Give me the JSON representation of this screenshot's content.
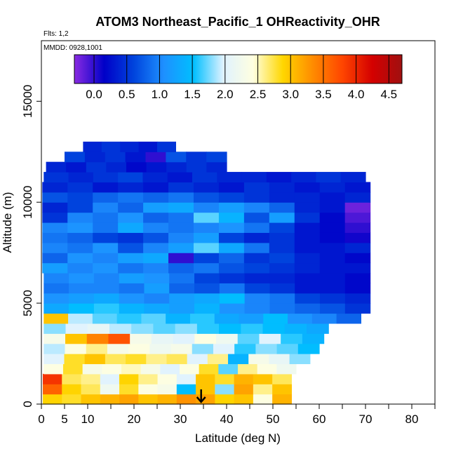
{
  "chart_data": {
    "type": "heatmap",
    "title": "ATOM3 Northeast_Pacific_1 OHReactivity_OHR",
    "annotations": {
      "flights": "Flts: 1,2",
      "dates": "MMDD: 0928,1001"
    },
    "xlabel": "Latitude (deg N)",
    "ylabel": "Altitude (m)",
    "xlim": [
      0,
      85
    ],
    "ylim": [
      0,
      18000
    ],
    "x_major_ticks": [
      0,
      10,
      20,
      30,
      40,
      50,
      60,
      70,
      80
    ],
    "x_minor_tick_labels": [
      5
    ],
    "x_minor_ticks": [
      5,
      15,
      25,
      35,
      45,
      55,
      65,
      75,
      85
    ],
    "y_ticks": [
      0,
      5000,
      10000,
      15000
    ],
    "colorbar": {
      "range": [
        -0.3,
        4.7
      ],
      "ticks": [
        0.0,
        0.5,
        1.0,
        1.5,
        2.0,
        2.5,
        3.0,
        3.5,
        4.0,
        4.5
      ],
      "tick_labels": [
        "0.0",
        "0.5",
        "1.0",
        "1.5",
        "2.0",
        "2.5",
        "3.0",
        "3.5",
        "4.0",
        "4.5"
      ],
      "colors": [
        "#8a2be2",
        "#0000c8",
        "#0044dd",
        "#1e90ff",
        "#00bfff",
        "#dff2ff",
        "#ffffe0",
        "#ffd700",
        "#ff8c00",
        "#ff4500",
        "#d40000",
        "#a01010"
      ]
    },
    "marker": {
      "latitude": 34.5,
      "direction": "down"
    },
    "altitude_bins": [
      {
        "alt": [
          0,
          500
        ],
        "lat": [
          0.3,
          54
        ],
        "values": [
          2.9,
          2.8,
          3.0,
          3.1,
          3.2,
          3.0,
          3.1,
          3.3,
          3.2,
          2.9,
          3.0,
          2.4,
          3.1
        ]
      },
      {
        "alt": [
          500,
          1000
        ],
        "lat": [
          0.3,
          54
        ],
        "values": [
          3.6,
          2.9,
          2.7,
          2.2,
          2.8,
          2.4,
          2.3,
          1.5,
          3.0,
          1.8,
          3.2,
          2.6,
          3.0
        ]
      },
      {
        "alt": [
          1000,
          1500
        ],
        "lat": [
          0.3,
          54
        ],
        "values": [
          3.9,
          2.7,
          2.6,
          2.0,
          2.9,
          2.6,
          2.4,
          2.0,
          3.0,
          2.8,
          3.1,
          3.0,
          2.7
        ]
      },
      {
        "alt": [
          1500,
          2000
        ],
        "lat": [
          0.5,
          55
        ],
        "values": [
          2.4,
          2.8,
          2.3,
          2.4,
          2.5,
          2.3,
          2.0,
          2.4,
          2.8,
          1.7,
          2.6,
          2.4,
          2.2
        ]
      },
      {
        "alt": [
          2000,
          2500
        ],
        "lat": [
          0.5,
          58
        ],
        "values": [
          2.0,
          2.8,
          3.0,
          2.7,
          2.8,
          2.6,
          2.7,
          2.0,
          2.6,
          1.4,
          2.3,
          2.1,
          1.8
        ]
      },
      {
        "alt": [
          2500,
          3000
        ],
        "lat": [
          0.5,
          60
        ],
        "values": [
          1.9,
          2.4,
          2.6,
          2.3,
          2.4,
          2.2,
          2.3,
          1.8,
          2.0,
          1.6,
          1.8,
          1.7,
          1.5
        ]
      },
      {
        "alt": [
          3000,
          3500
        ],
        "lat": [
          0.5,
          61
        ],
        "values": [
          2.3,
          3.0,
          3.4,
          3.7,
          2.3,
          2.1,
          2.0,
          2.4,
          2.2,
          1.7,
          2.0,
          1.6,
          1.4
        ]
      },
      {
        "alt": [
          3500,
          4000
        ],
        "lat": [
          0.5,
          62
        ],
        "values": [
          1.8,
          2.0,
          2.1,
          1.9,
          1.8,
          1.7,
          1.8,
          1.6,
          1.5,
          1.6,
          1.5,
          1.4,
          1.3
        ]
      },
      {
        "alt": [
          4000,
          4500
        ],
        "lat": [
          0.5,
          69
        ],
        "values": [
          3.0,
          1.9,
          1.7,
          1.6,
          1.7,
          1.4,
          1.6,
          1.3,
          1.2,
          1.5,
          1.1,
          1.0,
          0.8
        ]
      },
      {
        "alt": [
          4500,
          5000
        ],
        "lat": [
          0.5,
          71
        ],
        "values": [
          1.3,
          1.5,
          1.6,
          1.4,
          1.3,
          1.2,
          1.4,
          1.1,
          1.0,
          0.9,
          0.8,
          0.7,
          0.5
        ]
      },
      {
        "alt": [
          5000,
          5500
        ],
        "lat": [
          0.5,
          71
        ],
        "values": [
          1.1,
          1.2,
          1.3,
          1.1,
          1.0,
          1.2,
          1.3,
          1.5,
          1.0,
          0.9,
          0.6,
          0.5,
          0.4
        ]
      },
      {
        "alt": [
          5500,
          6000
        ],
        "lat": [
          0.5,
          71
        ],
        "values": [
          0.9,
          1.0,
          1.0,
          0.9,
          1.2,
          0.8,
          0.7,
          0.9,
          0.6,
          0.5,
          0.3,
          0.3,
          0.2
        ]
      },
      {
        "alt": [
          6000,
          6500
        ],
        "lat": [
          0.5,
          71
        ],
        "values": [
          1.0,
          1.1,
          1.0,
          1.2,
          1.1,
          0.9,
          0.6,
          0.5,
          0.4,
          0.4,
          0.3,
          0.3,
          0.2
        ]
      },
      {
        "alt": [
          6500,
          7000
        ],
        "lat": [
          0.2,
          71
        ],
        "values": [
          1.2,
          1.0,
          1.1,
          0.9,
          1.0,
          0.8,
          0.9,
          0.7,
          0.6,
          0.5,
          0.4,
          0.3,
          0.3
        ]
      },
      {
        "alt": [
          7000,
          7500
        ],
        "lat": [
          0.2,
          71
        ],
        "values": [
          0.8,
          1.1,
          1.0,
          1.2,
          1.3,
          0.0,
          0.6,
          0.8,
          0.5,
          0.6,
          0.4,
          0.3,
          0.2
        ]
      },
      {
        "alt": [
          7500,
          8000
        ],
        "lat": [
          0.2,
          71
        ],
        "values": [
          1.0,
          0.9,
          1.1,
          0.7,
          1.0,
          1.2,
          1.7,
          1.3,
          0.9,
          0.5,
          0.3,
          0.3,
          0.4
        ]
      },
      {
        "alt": [
          8000,
          8500
        ],
        "lat": [
          0.2,
          71
        ],
        "values": [
          0.9,
          0.8,
          0.6,
          0.5,
          0.7,
          1.0,
          1.2,
          0.6,
          0.4,
          0.5,
          0.3,
          0.2,
          0.1
        ]
      },
      {
        "alt": [
          8500,
          9000
        ],
        "lat": [
          0.2,
          71
        ],
        "values": [
          1.0,
          1.1,
          0.9,
          1.3,
          1.0,
          0.9,
          1.0,
          1.1,
          0.9,
          0.6,
          0.3,
          0.2,
          0.0
        ]
      },
      {
        "alt": [
          9000,
          9500
        ],
        "lat": [
          0.2,
          71
        ],
        "values": [
          0.5,
          1.0,
          0.9,
          1.1,
          0.8,
          0.9,
          1.7,
          1.4,
          0.7,
          1.2,
          0.5,
          0.2,
          -0.1
        ]
      },
      {
        "alt": [
          9500,
          10000
        ],
        "lat": [
          0.2,
          71
        ],
        "values": [
          0.4,
          0.6,
          1.0,
          0.8,
          1.2,
          1.3,
          1.0,
          1.2,
          1.0,
          0.8,
          0.4,
          0.3,
          -0.2
        ]
      },
      {
        "alt": [
          10000,
          10500
        ],
        "lat": [
          0.2,
          71
        ],
        "values": [
          0.7,
          0.6,
          0.8,
          0.9,
          0.8,
          0.9,
          0.7,
          0.6,
          0.5,
          0.4,
          0.4,
          0.3,
          0.4
        ]
      },
      {
        "alt": [
          10500,
          11000
        ],
        "lat": [
          0.2,
          71
        ],
        "values": [
          0.4,
          0.5,
          0.3,
          0.4,
          0.3,
          0.5,
          0.4,
          0.3,
          0.5,
          0.4,
          0.3,
          0.4,
          0.3
        ]
      },
      {
        "alt": [
          11000,
          11500
        ],
        "lat": [
          0.5,
          70
        ],
        "values": [
          0.5,
          0.4,
          0.5,
          0.6,
          0.4,
          0.3,
          0.5,
          0.4,
          0.4,
          0.3,
          0.4,
          0.5,
          0.4
        ]
      },
      {
        "alt": [
          11500,
          12000
        ],
        "lat": [
          1.0,
          40
        ],
        "values": [
          0.4,
          0.3,
          0.5,
          0.4,
          0.2,
          0.3,
          0.4,
          0.5,
          0.4
        ]
      },
      {
        "alt": [
          12000,
          12500
        ],
        "lat": [
          5.0,
          40
        ],
        "values": [
          0.6,
          0.4,
          0.5,
          0.3,
          0.0,
          0.7,
          0.5,
          0.6
        ]
      },
      {
        "alt": [
          12500,
          13000
        ],
        "lat": [
          9.0,
          29
        ],
        "values": [
          0.4,
          0.5,
          0.4,
          0.3,
          0.5
        ]
      }
    ]
  }
}
